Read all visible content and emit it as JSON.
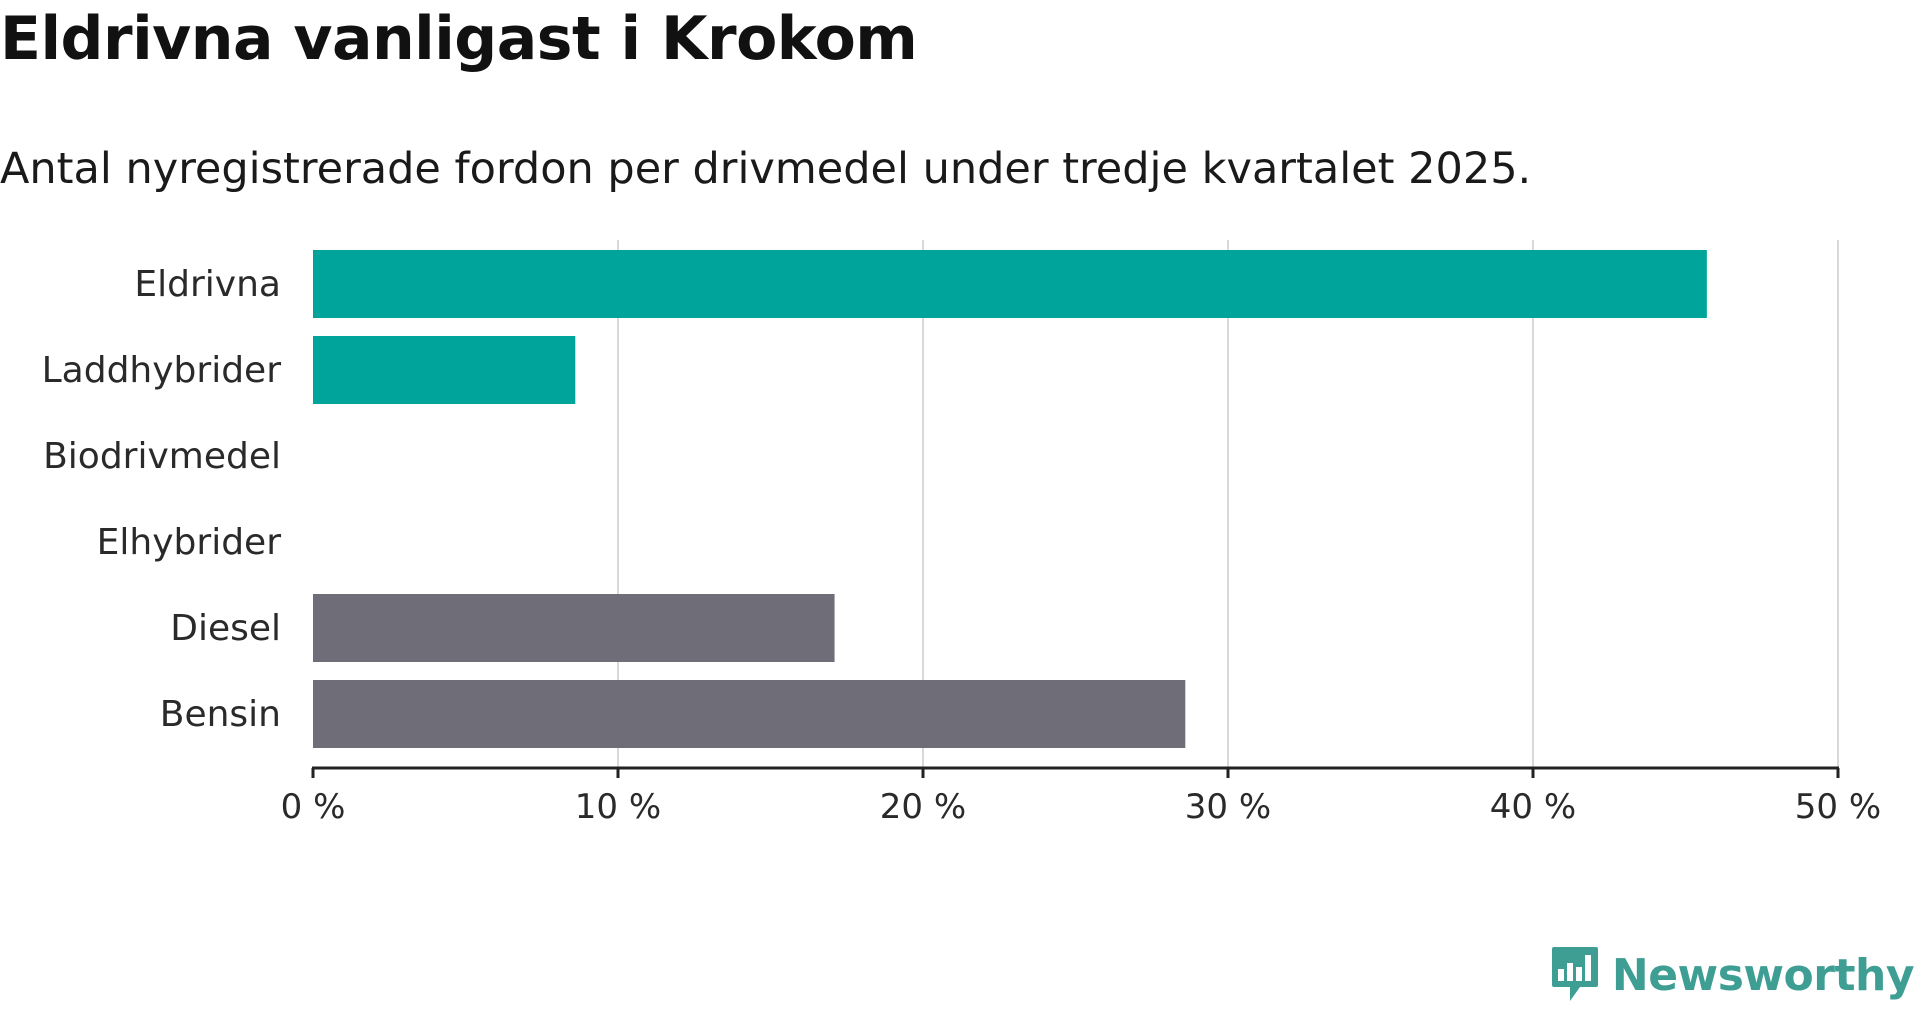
{
  "header": {
    "title": "Eldrivna vanligast i Krokom",
    "subtitle": "Antal nyregistrerade fordon per drivmedel under tredje kvartalet 2025."
  },
  "chart_data": {
    "type": "bar",
    "orientation": "horizontal",
    "title": "Eldrivna vanligast i Krokom",
    "subtitle": "Antal nyregistrerade fordon per drivmedel under tredje kvartalet 2025.",
    "categories": [
      "Eldrivna",
      "Laddhybrider",
      "Biodrivmedel",
      "Elhybrider",
      "Diesel",
      "Bensin"
    ],
    "values": [
      45.7,
      8.6,
      0,
      0,
      17.1,
      28.6
    ],
    "bar_colors": [
      "#00a49a",
      "#00a49a",
      "#00a49a",
      "#00a49a",
      "#6f6e78",
      "#6f6e78"
    ],
    "xlim": [
      0,
      50
    ],
    "xticks": [
      0,
      10,
      20,
      30,
      40,
      50
    ],
    "xtick_labels": [
      "0 %",
      "10 %",
      "20 %",
      "30 %",
      "40 %",
      "50 %"
    ],
    "xlabel": "",
    "ylabel": "",
    "grid": true
  },
  "colors": {
    "electric": "#00a49a",
    "fossil": "#6f6e78",
    "grid": "#d9d9d9",
    "axis": "#222222",
    "brand": "#3e9e94"
  },
  "brand": {
    "name": "Newsworthy",
    "icon": "newsworthy-logo-icon"
  }
}
